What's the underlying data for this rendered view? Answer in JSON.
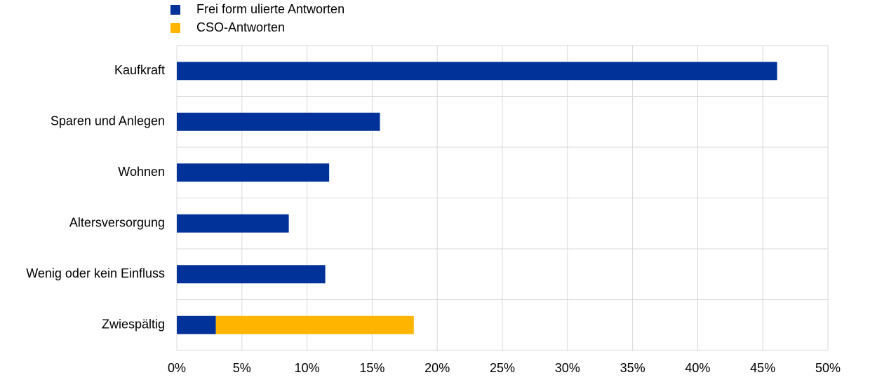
{
  "chart_data": {
    "type": "stacked-bar-horizontal",
    "categories": [
      "Kaufkraft",
      "Sparen und Anlegen",
      "Wohnen",
      "Altersversorgung",
      "Wenig oder kein Einfluss",
      "Zwiespältig"
    ],
    "series": [
      {
        "name": "Frei form ulierte Antworten",
        "color": "#003299",
        "values": [
          46.1,
          15.6,
          11.7,
          8.6,
          11.4,
          3.0
        ]
      },
      {
        "name": "CSO-Antworten",
        "color": "#ffb400",
        "values": [
          null,
          null,
          null,
          null,
          null,
          15.2
        ]
      }
    ],
    "xlim": [
      0,
      50
    ],
    "xticks": [
      {
        "value": 0,
        "label": "0%"
      },
      {
        "value": 5,
        "label": "5%"
      },
      {
        "value": 10,
        "label": "10%"
      },
      {
        "value": 15,
        "label": "15%"
      },
      {
        "value": 20,
        "label": "20%"
      },
      {
        "value": 25,
        "label": "25%"
      },
      {
        "value": 30,
        "label": "30%"
      },
      {
        "value": 35,
        "label": "35%"
      },
      {
        "value": 40,
        "label": "40%"
      },
      {
        "value": 45,
        "label": "45%"
      },
      {
        "value": 50,
        "label": "50%"
      }
    ],
    "grid": true
  }
}
